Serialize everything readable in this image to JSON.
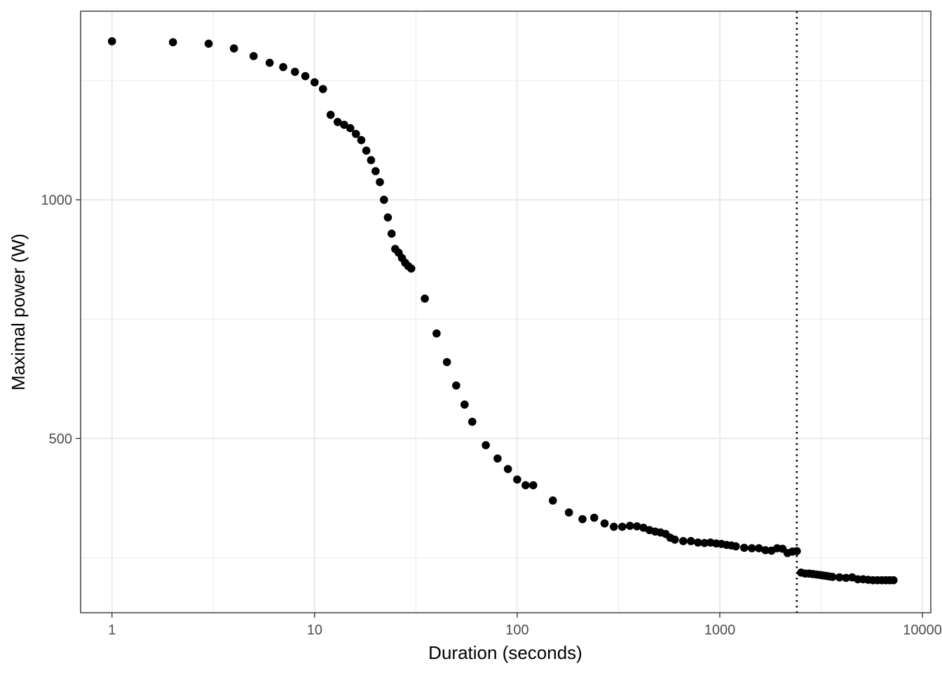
{
  "chart_data": {
    "type": "scatter",
    "title": "",
    "xlabel": "Duration (seconds)",
    "ylabel": "Maximal power (W)",
    "x_scale": "log10",
    "xlim": [
      0.7,
      11000
    ],
    "ylim": [
      135,
      1395
    ],
    "x_ticks": [
      1,
      10,
      100,
      1000,
      10000
    ],
    "x_tick_labels": [
      "1",
      "10",
      "100",
      "1000",
      "10000"
    ],
    "y_ticks": [
      500,
      1000
    ],
    "y_tick_labels": [
      "500",
      "1000"
    ],
    "y_minor_grid": [
      250,
      750,
      1250
    ],
    "grid": true,
    "vline": {
      "x": 2400,
      "style": "dotted"
    },
    "point_color": "#000000",
    "series": [
      {
        "x": [
          1,
          2,
          3,
          4,
          5,
          6,
          7,
          8,
          9,
          10,
          11,
          12,
          13,
          14,
          15,
          16,
          17,
          18,
          19,
          20,
          21,
          22,
          23,
          24,
          25,
          26,
          27,
          28,
          29,
          30,
          35,
          40,
          45,
          50,
          55,
          60,
          70,
          80,
          90,
          100,
          110,
          120,
          150,
          180,
          210,
          240,
          270,
          300,
          330,
          360,
          390,
          420,
          450,
          480,
          510,
          540,
          570,
          600,
          660,
          720,
          780,
          840,
          900,
          960,
          1020,
          1080,
          1140,
          1200,
          1320,
          1440,
          1560,
          1680,
          1800,
          1920,
          2040,
          2160,
          2280,
          2400,
          2520,
          2640,
          2760,
          2880,
          3000,
          3120,
          3240,
          3360,
          3480,
          3600,
          3900,
          4200,
          4500,
          4800,
          5100,
          5400,
          5700,
          6000,
          6300,
          6600,
          6900,
          7200
        ],
        "y": [
          1332,
          1330,
          1327,
          1317,
          1301,
          1287,
          1278,
          1268,
          1259,
          1246,
          1232,
          1178,
          1163,
          1157,
          1150,
          1138,
          1125,
          1103,
          1083,
          1060,
          1037,
          1000,
          963,
          929,
          897,
          889,
          878,
          868,
          861,
          856,
          793,
          720,
          660,
          611,
          571,
          535,
          486,
          458,
          436,
          414,
          402,
          402,
          370,
          345,
          331,
          334,
          322,
          315,
          315,
          317,
          316,
          313,
          308,
          305,
          303,
          300,
          292,
          288,
          285,
          285,
          282,
          281,
          282,
          280,
          279,
          277,
          276,
          274,
          271,
          270,
          270,
          266,
          265,
          270,
          269,
          260,
          263,
          264,
          219,
          217,
          217,
          216,
          215,
          214,
          213,
          212,
          211,
          210,
          209,
          208,
          209,
          205,
          205,
          204,
          203,
          203,
          203,
          203,
          203,
          203
        ]
      }
    ]
  }
}
